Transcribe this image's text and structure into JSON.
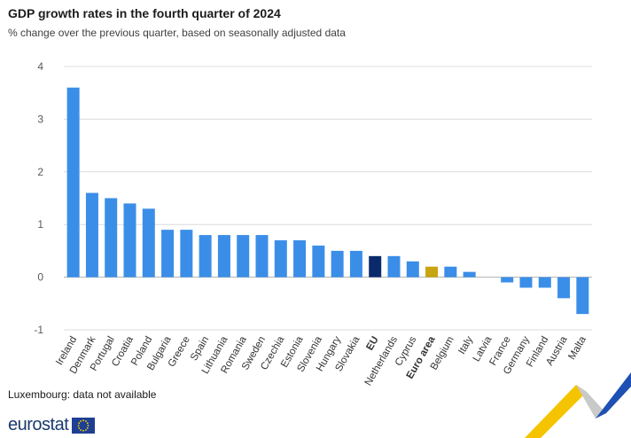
{
  "header": {
    "title": "GDP growth rates in the fourth quarter of 2024",
    "subtitle": "% change over the previous quarter, based on seasonally adjusted data"
  },
  "footnote": "Luxembourg: data not available",
  "brand": {
    "name": "eurostat"
  },
  "colors": {
    "country": "#3b8ee8",
    "eu": "#0a2a6b",
    "euro_area": "#c8a40f",
    "grid": "#dcdcdc",
    "tick": "#595959"
  },
  "chart_data": {
    "type": "bar",
    "title": "GDP growth rates in the fourth quarter of 2024",
    "xlabel": "",
    "ylabel": "",
    "ylim": [
      -1,
      4
    ],
    "yticks": [
      -1,
      0,
      1,
      2,
      3,
      4
    ],
    "grid": true,
    "categories": [
      "Ireland",
      "Denmark",
      "Portugal",
      "Croatia",
      "Poland",
      "Bulgaria",
      "Greece",
      "Spain",
      "Lithuania",
      "Romania",
      "Sweden",
      "Czechia",
      "Estonia",
      "Slovenia",
      "Hungary",
      "Slovakia",
      "EU",
      "Netherlands",
      "Cyprus",
      "Euro area",
      "Belgium",
      "Italy",
      "Latvia",
      "France",
      "Germany",
      "Finland",
      "Austria",
      "Malta"
    ],
    "values": [
      3.6,
      1.6,
      1.5,
      1.4,
      1.3,
      0.9,
      0.9,
      0.8,
      0.8,
      0.8,
      0.8,
      0.7,
      0.7,
      0.6,
      0.5,
      0.5,
      0.4,
      0.4,
      0.3,
      0.2,
      0.2,
      0.1,
      0.0,
      -0.1,
      -0.2,
      -0.2,
      -0.4,
      -0.7
    ],
    "highlight": {
      "EU": "eu",
      "Euro area": "euro_area"
    }
  }
}
